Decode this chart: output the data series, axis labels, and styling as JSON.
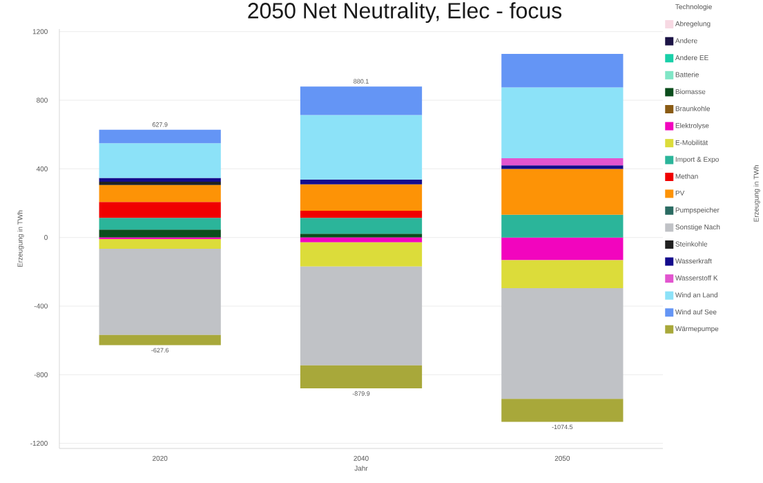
{
  "chart_data": {
    "type": "bar",
    "title": "2050 Net Neutrality, Elec - focus",
    "xlabel": "Jahr",
    "ylabel": "Erzeugung in TWh",
    "legend_title": "Technologie",
    "categories": [
      "2020",
      "2040",
      "2050"
    ],
    "stacked": true,
    "series": [
      {
        "name": "Abregelung",
        "color": "#f7d9e3",
        "values": [
          null,
          null,
          null
        ]
      },
      {
        "name": "Andere",
        "color": "#1c1446",
        "values": [
          null,
          null,
          null
        ]
      },
      {
        "name": "Andere EE",
        "color": "#19cfa8",
        "values": [
          null,
          null,
          null
        ]
      },
      {
        "name": "Batterie",
        "color": "#80e6c6",
        "values": [
          null,
          null,
          null
        ]
      },
      {
        "name": "Biomasse",
        "color": "#0b4d1c",
        "values": [
          46,
          22,
          null
        ]
      },
      {
        "name": "Braunkohle",
        "color": "#8a5b14",
        "values": [
          null,
          null,
          null
        ]
      },
      {
        "name": "Elektrolyse",
        "color": "#f205be",
        "values": [
          -10,
          -29,
          -132
        ]
      },
      {
        "name": "E-Mobilität",
        "color": "#dcdc3a",
        "values": [
          -56,
          -141,
          -164
        ]
      },
      {
        "name": "Import & Expo",
        "color": "#2bb59a",
        "values": [
          68,
          92,
          132
        ]
      },
      {
        "name": "Methan",
        "color": "#f00000",
        "values": [
          93,
          42,
          null
        ]
      },
      {
        "name": "PV",
        "color": "#fd9306",
        "values": [
          99,
          154,
          267
        ]
      },
      {
        "name": "Pumpspeicher",
        "color": "#2b6b62",
        "values": [
          null,
          null,
          null
        ]
      },
      {
        "name": "Sonstige Nach",
        "color": "#c0c2c6",
        "values": [
          -502,
          -576,
          -645
        ]
      },
      {
        "name": "Steinkohle",
        "color": "#202020",
        "values": [
          19,
          null,
          null
        ]
      },
      {
        "name": "Wasserkraft",
        "color": "#140c8c",
        "values": [
          22,
          28,
          21
        ]
      },
      {
        "name": "Wasserstoff K",
        "color": "#e255cf",
        "values": [
          null,
          null,
          42
        ]
      },
      {
        "name": "Wind an Land",
        "color": "#8ce2f8",
        "values": [
          202,
          375,
          413
        ]
      },
      {
        "name": "Wind auf See",
        "color": "#6495f5",
        "values": [
          79,
          167,
          195
        ]
      },
      {
        "name": "Wärmepumpe",
        "color": "#a8a83a",
        "values": [
          -60,
          -134,
          -134
        ]
      }
    ],
    "ylim": [
      -1230,
      1215
    ],
    "yticks": [
      -1200,
      -800,
      -400,
      0,
      400,
      800,
      1200
    ],
    "grid": "y",
    "legend": "top right",
    "annotations": [
      {
        "text": "627.9",
        "x": "2020",
        "y": 627.9
      },
      {
        "text": "-627.6",
        "x": "2020",
        "y": -627.6
      },
      {
        "text": "880.1",
        "x": "2040",
        "y": 880.1
      },
      {
        "text": "-879.9",
        "x": "2040",
        "y": -879.9
      },
      {
        "text": "-1074.5",
        "x": "2050",
        "y": -1074.5
      },
      "Erzeugung in TWh"
    ]
  }
}
